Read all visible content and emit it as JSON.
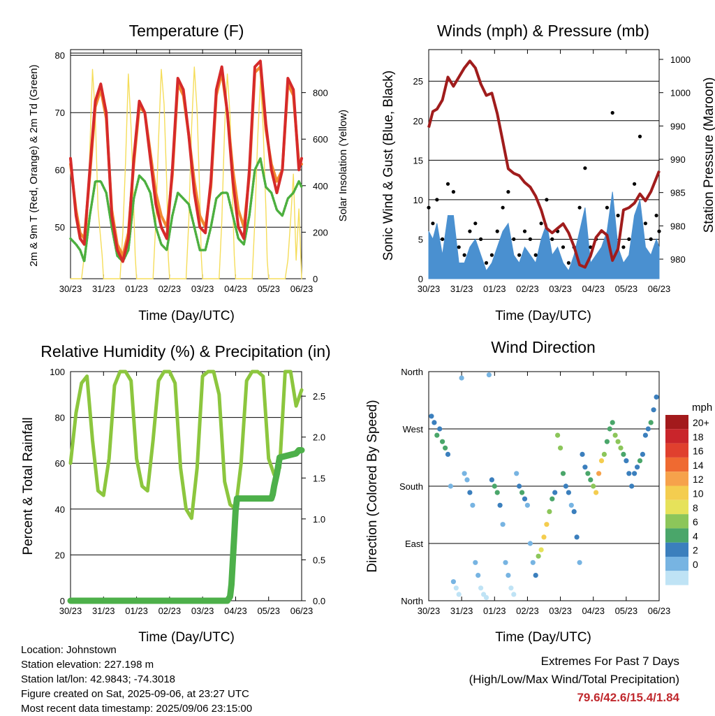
{
  "days": [
    "30/23",
    "31/23",
    "01/23",
    "02/23",
    "03/23",
    "04/23",
    "05/23",
    "06/23"
  ],
  "x_label": "Time (Day/UTC)",
  "temperature": {
    "title": "Temperature (F)",
    "ylabel": "2m & 9m T (Red, Orange) & 2m Td (Green)",
    "y2label": "Solar Insolation (Yellow)",
    "ylim": [
      41,
      81
    ],
    "yticks": [
      "50",
      "60",
      "70",
      "80"
    ],
    "y2lim": [
      0,
      985
    ],
    "y2ticks": [
      "0",
      "200",
      "400",
      "600",
      "800"
    ],
    "hour_x": [
      0,
      4,
      7,
      10,
      14,
      18,
      22,
      26,
      30,
      34,
      38,
      42,
      46,
      50,
      54,
      58,
      62,
      66,
      70,
      74,
      78,
      82,
      86,
      90,
      94,
      98,
      102,
      106,
      110,
      114,
      118,
      122,
      126,
      130,
      134,
      138,
      142,
      146,
      150,
      154,
      158,
      162,
      166,
      168
    ],
    "t2m": [
      62,
      52,
      48,
      47,
      60,
      72,
      75,
      70,
      52,
      46,
      44,
      48,
      62,
      72,
      70,
      62,
      54,
      50,
      48,
      60,
      76,
      74,
      66,
      56,
      50,
      49,
      58,
      74,
      78,
      70,
      58,
      50,
      48,
      60,
      78,
      79,
      68,
      60,
      56,
      60,
      76,
      74,
      60,
      62
    ],
    "t9m": [
      61,
      53,
      49,
      48,
      59,
      71,
      74,
      69,
      53,
      47,
      45,
      49,
      61,
      71,
      70,
      63,
      56,
      52,
      50,
      59,
      75,
      73,
      66,
      58,
      52,
      50,
      57,
      73,
      77,
      70,
      60,
      53,
      50,
      59,
      77,
      78,
      67,
      61,
      58,
      60,
      75,
      73,
      61,
      61
    ],
    "td2m": [
      48,
      47,
      46,
      44,
      52,
      58,
      58,
      56,
      50,
      45,
      44,
      46,
      55,
      59,
      58,
      56,
      50,
      47,
      46,
      52,
      56,
      55,
      54,
      50,
      46,
      46,
      50,
      55,
      56,
      56,
      52,
      48,
      47,
      52,
      60,
      62,
      57,
      56,
      53,
      52,
      55,
      56,
      58,
      57
    ],
    "solar_x": [
      0,
      8,
      12,
      14,
      16,
      18,
      20,
      23,
      24,
      30,
      36,
      38,
      40,
      42,
      44,
      46,
      47,
      48,
      54,
      60,
      62,
      64,
      66,
      68,
      70,
      71,
      72,
      78,
      84,
      86,
      88,
      90,
      92,
      94,
      95,
      96,
      102,
      108,
      110,
      112,
      114,
      116,
      118,
      119,
      120,
      126,
      132,
      134,
      136,
      138,
      140,
      142,
      143,
      144,
      150,
      156,
      158,
      160,
      162,
      164,
      166,
      168
    ],
    "solar": [
      0,
      0,
      200,
      550,
      900,
      700,
      300,
      100,
      0,
      0,
      0,
      200,
      500,
      880,
      650,
      300,
      100,
      0,
      0,
      0,
      250,
      600,
      900,
      750,
      400,
      100,
      0,
      0,
      0,
      250,
      650,
      910,
      720,
      350,
      100,
      0,
      0,
      0,
      250,
      650,
      880,
      700,
      300,
      100,
      0,
      0,
      0,
      250,
      600,
      850,
      650,
      300,
      80,
      0,
      0,
      0,
      80,
      250,
      450,
      80,
      300,
      0
    ]
  },
  "winds": {
    "title": "Winds (mph) & Pressure (mb)",
    "ylabel": "Sonic Wind & Gust (Blue, Black)",
    "y2label": "Station Pressure (Maroon)",
    "ylim": [
      0,
      29
    ],
    "yticks": [
      "0",
      "5",
      "10",
      "15",
      "20",
      "25"
    ],
    "p_ticks": [
      "980",
      "980",
      "985",
      "990",
      "990",
      "1000",
      "1000"
    ],
    "hour_x": [
      0,
      3,
      6,
      10,
      14,
      18,
      22,
      26,
      30,
      34,
      38,
      42,
      46,
      50,
      54,
      58,
      62,
      66,
      70,
      74,
      78,
      82,
      86,
      90,
      94,
      98,
      102,
      106,
      110,
      114,
      118,
      122,
      126,
      130,
      134,
      138,
      142,
      146,
      150,
      154,
      158,
      162,
      166,
      168
    ],
    "wind": [
      6,
      5,
      7,
      3,
      8,
      8,
      2,
      2,
      4,
      5,
      3,
      1,
      2,
      4,
      6,
      7,
      3,
      2,
      4,
      3,
      2,
      5,
      7,
      3,
      4,
      2,
      1,
      3,
      6,
      9,
      2,
      3,
      4,
      6,
      11,
      4,
      2,
      3,
      8,
      10,
      4,
      3,
      5,
      4
    ],
    "gust": [
      9,
      7,
      10,
      5,
      12,
      11,
      4,
      3,
      6,
      7,
      5,
      2,
      3,
      6,
      9,
      11,
      5,
      3,
      6,
      5,
      3,
      7,
      10,
      5,
      6,
      4,
      2,
      4,
      9,
      14,
      4,
      5,
      6,
      9,
      21,
      8,
      4,
      5,
      12,
      18,
      7,
      5,
      8,
      6
    ],
    "pressure_frac": [
      0.34,
      0.27,
      0.26,
      0.22,
      0.12,
      0.16,
      0.12,
      0.08,
      0.05,
      0.08,
      0.15,
      0.2,
      0.19,
      0.28,
      0.4,
      0.52,
      0.54,
      0.55,
      0.58,
      0.6,
      0.64,
      0.7,
      0.78,
      0.8,
      0.78,
      0.76,
      0.8,
      0.86,
      0.94,
      0.95,
      0.9,
      0.82,
      0.79,
      0.81,
      0.92,
      0.87,
      0.7,
      0.69,
      0.67,
      0.63,
      0.66,
      0.62,
      0.56,
      0.53
    ]
  },
  "humidity": {
    "title": "Relative Humidity (%) & Precipitation (in)",
    "ylabel": "Percent & Total Rainfall",
    "ylim": [
      0,
      100
    ],
    "yticks": [
      "0",
      "20",
      "40",
      "60",
      "80",
      "100"
    ],
    "y2lim": [
      0,
      2.8
    ],
    "y2ticks": [
      "0.0",
      "0.5",
      "1.0",
      "1.5",
      "2.0",
      "2.5"
    ],
    "hour_x": [
      0,
      4,
      8,
      12,
      16,
      20,
      24,
      28,
      32,
      36,
      40,
      44,
      48,
      52,
      56,
      60,
      64,
      68,
      72,
      76,
      80,
      84,
      88,
      92,
      96,
      100,
      104,
      108,
      112,
      116,
      120,
      124,
      128,
      132,
      136,
      140,
      144,
      148,
      152,
      156,
      160,
      164,
      168
    ],
    "rh": [
      60,
      82,
      95,
      98,
      70,
      48,
      46,
      62,
      94,
      100,
      100,
      96,
      62,
      50,
      48,
      70,
      96,
      100,
      100,
      95,
      58,
      40,
      36,
      58,
      98,
      100,
      100,
      90,
      52,
      42,
      40,
      60,
      96,
      100,
      100,
      98,
      62,
      55,
      58,
      100,
      100,
      85,
      92
    ],
    "precip_x": [
      0,
      114,
      116,
      117,
      118,
      119,
      120,
      121,
      136,
      146,
      147,
      148,
      150,
      151,
      152,
      164,
      165,
      166,
      168
    ],
    "precip": [
      0,
      0,
      0.05,
      0.2,
      0.5,
      0.8,
      1.1,
      1.25,
      1.25,
      1.25,
      1.3,
      1.4,
      1.55,
      1.65,
      1.75,
      1.8,
      1.82,
      1.84,
      1.84
    ]
  },
  "wind_direction": {
    "title": "Wind Direction",
    "ylabel": "Direction (Colored By Speed)",
    "ylabels": [
      "North",
      "East",
      "South",
      "West",
      "North"
    ],
    "legend_unit": "mph",
    "legend_labels": [
      "20+",
      "18",
      "16",
      "14",
      "12",
      "10",
      "8",
      "6",
      "4",
      "2",
      "0"
    ],
    "legend_colors": [
      "#a31a1c",
      "#c9252b",
      "#e0402e",
      "#ef6a31",
      "#f6a24b",
      "#f4cd4f",
      "#e6e25a",
      "#8cc65a",
      "#4aa66a",
      "#3b7fbd",
      "#77b4e2",
      "#bfe3f5"
    ],
    "hour_x": [
      2,
      4,
      6,
      8,
      10,
      12,
      14,
      16,
      18,
      20,
      22,
      24,
      26,
      28,
      30,
      32,
      34,
      36,
      38,
      40,
      42,
      44,
      46,
      48,
      50,
      52,
      54,
      56,
      58,
      60,
      62,
      64,
      66,
      68,
      70,
      72,
      74,
      76,
      78,
      80,
      82,
      84,
      86,
      88,
      90,
      92,
      94,
      96,
      98,
      100,
      102,
      104,
      106,
      108,
      110,
      112,
      114,
      116,
      118,
      120,
      122,
      124,
      126,
      128,
      130,
      132,
      134,
      136,
      138,
      140,
      142,
      144,
      146,
      148,
      150,
      152,
      154,
      156,
      158,
      160,
      162,
      164,
      166
    ],
    "dir": [
      290,
      280,
      260,
      270,
      250,
      240,
      230,
      180,
      30,
      20,
      10,
      350,
      200,
      190,
      170,
      150,
      60,
      40,
      20,
      10,
      5,
      355,
      190,
      180,
      170,
      150,
      120,
      60,
      40,
      20,
      10,
      200,
      180,
      170,
      160,
      150,
      90,
      60,
      40,
      70,
      80,
      100,
      120,
      140,
      160,
      170,
      260,
      240,
      200,
      180,
      170,
      150,
      140,
      100,
      60,
      230,
      210,
      200,
      190,
      180,
      170,
      200,
      220,
      230,
      250,
      270,
      280,
      260,
      250,
      240,
      230,
      220,
      200,
      180,
      200,
      210,
      220,
      230,
      260,
      270,
      280,
      300,
      320
    ],
    "speed": [
      4,
      5,
      6,
      5,
      6,
      7,
      4,
      3,
      2,
      1,
      1,
      2,
      3,
      3,
      4,
      3,
      2,
      2,
      1,
      1,
      1,
      2,
      4,
      6,
      7,
      5,
      3,
      2,
      2,
      1,
      1,
      3,
      5,
      6,
      5,
      3,
      2,
      3,
      5,
      8,
      10,
      12,
      12,
      9,
      6,
      4,
      8,
      9,
      7,
      5,
      4,
      3,
      4,
      5,
      2,
      4,
      5,
      6,
      7,
      9,
      13,
      14,
      12,
      8,
      7,
      6,
      7,
      8,
      9,
      8,
      6,
      5,
      4,
      5,
      4,
      5,
      6,
      5,
      4,
      5,
      6,
      5,
      4
    ]
  },
  "info": {
    "location": "Location: Johnstown",
    "elevation": "Station elevation: 227.198 m",
    "latlon": "Station lat/lon: 42.9843; -74.3018",
    "created": "Figure created on Sat, 2025-09-06, at 23:27 UTC",
    "latest": "Most recent data timestamp: 2025/09/06 23:15:00"
  },
  "extremes": {
    "line1": "Extremes For Past 7 Days",
    "line2": "(High/Low/Max Wind/Total Precipitation)",
    "values": "79.6/42.6/15.4/1.84"
  },
  "colors": {
    "t2m": "#d62a2a",
    "t9m": "#f28a30",
    "td2m": "#4caf3f",
    "solar": "#f5dd5a",
    "wind": "#4a90d0",
    "gust": "#000000",
    "pressure": "#a01c1c",
    "rh": "#8cc63e",
    "precip": "#4db04a"
  }
}
